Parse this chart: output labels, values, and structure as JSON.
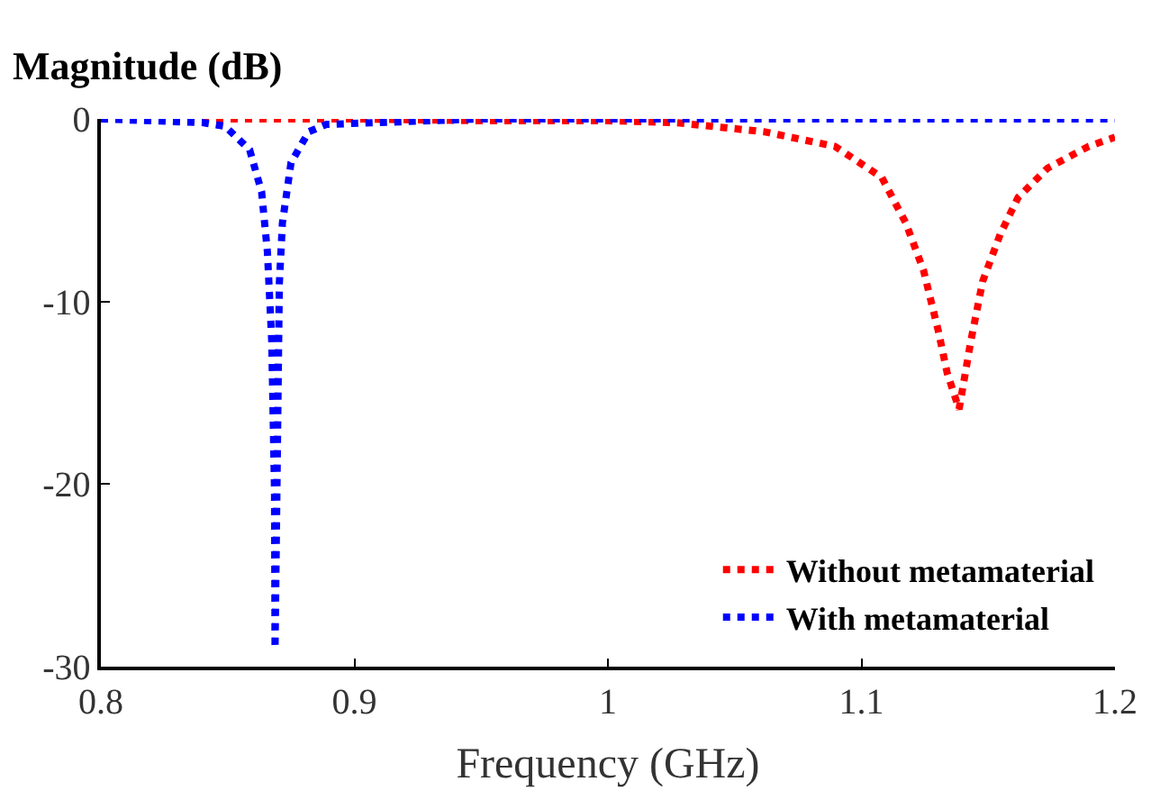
{
  "chart_data": {
    "type": "line",
    "ylabel": "Magnitude (dB)",
    "xlabel": "Frequency (GHz)",
    "xlim": [
      0.8,
      1.2
    ],
    "xticks": [
      0.8,
      0.9,
      1,
      1.1,
      1.2
    ],
    "ylim": [
      -30,
      0
    ],
    "yticks": [
      -30,
      -20,
      -10,
      0
    ],
    "legend": "bottom right",
    "line_style": "dotted",
    "marker": "none",
    "series": [
      {
        "name": "Without metamaterial",
        "color": "#ff0000",
        "x": [
          0.8,
          0.9,
          0.95,
          1.0,
          1.0266,
          1.0615,
          1.0895,
          1.108,
          1.1175,
          1.1245,
          1.1303,
          1.1338,
          1.1385,
          1.1431,
          1.1478,
          1.1548,
          1.1618,
          1.1734,
          1.1897,
          1.2
        ],
        "values": [
          0,
          0,
          -0.1,
          -0.1,
          -0.2,
          -0.7,
          -1.5,
          -3.2,
          -5.7,
          -8.3,
          -11.6,
          -13.9,
          -15.9,
          -12.2,
          -8.9,
          -6.3,
          -4.3,
          -2.7,
          -1.5,
          -1.0
        ]
      },
      {
        "name": "With metamaterial",
        "color": "#0000ff",
        "x": [
          0.8,
          0.84,
          0.849,
          0.8587,
          0.8634,
          0.8657,
          0.8674,
          0.8685,
          0.8687,
          0.8704,
          0.8716,
          0.875,
          0.882,
          0.889,
          0.95,
          1.2
        ],
        "values": [
          0,
          -0.2,
          -0.4,
          -1.7,
          -4.0,
          -7.3,
          -12.2,
          -20.4,
          -29,
          -9,
          -5.7,
          -2.4,
          -0.7,
          -0.3,
          0,
          0
        ]
      }
    ]
  }
}
